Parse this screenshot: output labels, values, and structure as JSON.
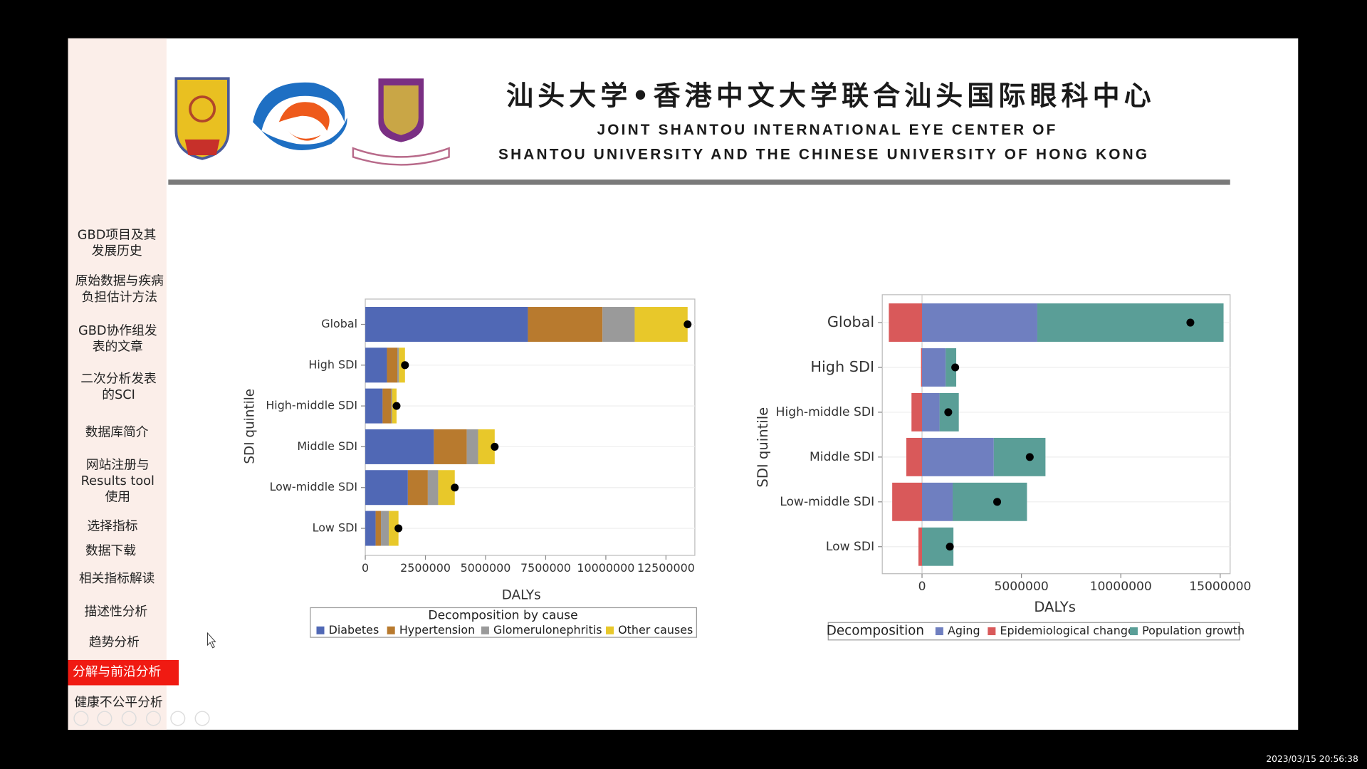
{
  "header": {
    "title_cn": "汕头大学•香港中文大学联合汕头国际眼科中心",
    "title_en": [
      "JOINT SHANTOU INTERNATIONAL EYE CENTER  OF",
      "SHANTOU UNIVERSITY AND THE CHINESE UNIVERSITY OF HONG KONG"
    ]
  },
  "sidebar": {
    "items": [
      [
        "GBD项目及其",
        "发展历史"
      ],
      [
        "原始数据与疾病",
        "负担估计方法"
      ],
      [
        "GBD协作组发",
        "表的文章"
      ],
      [
        "二次分析发表",
        "的SCI"
      ],
      [
        "数据库简介"
      ],
      [
        "网站注册与",
        "Results tool",
        "使用"
      ],
      [
        "选择指标"
      ],
      [
        "数据下载"
      ],
      [
        "相关指标解读"
      ],
      [
        "描述性分析"
      ],
      [
        "趋势分析"
      ],
      [
        "分解与前沿分析"
      ],
      [
        "健康不公平分析"
      ]
    ],
    "active": 11
  },
  "footer": {
    "timestamp": "2023/03/15 20:56:38"
  },
  "chart_data": [
    {
      "type": "bar",
      "orientation": "horizontal",
      "stacked": true,
      "categories": [
        "Global",
        "High SDI",
        "High-middle SDI",
        "Middle SDI",
        "Low-middle SDI",
        "Low SDI"
      ],
      "series": [
        {
          "name": "Diabetes",
          "color": "#5068b5",
          "values": [
            6760000,
            900000,
            720000,
            2850000,
            1770000,
            430000
          ]
        },
        {
          "name": "Hypertension",
          "color": "#b87a2e",
          "values": [
            3100000,
            430000,
            360000,
            1370000,
            830000,
            220000
          ]
        },
        {
          "name": "Glomerulonephritis",
          "color": "#9a9a9a",
          "values": [
            1340000,
            70000,
            40000,
            470000,
            430000,
            330000
          ]
        },
        {
          "name": "Other causes",
          "color": "#e8c82a",
          "values": [
            2200000,
            250000,
            180000,
            690000,
            690000,
            400000
          ]
        }
      ],
      "xlim": [
        0,
        13700000
      ],
      "xticks": [
        0,
        2500000,
        5000000,
        7500000,
        10000000,
        12500000
      ],
      "xlabel": "DALYs",
      "ylabel": "SDI quintile",
      "legend_title": "Decomposition by cause",
      "legend": "bottom",
      "grid": true
    },
    {
      "type": "bar",
      "orientation": "horizontal",
      "stacked": true,
      "categories": [
        "Global",
        "High SDI",
        "High-middle SDI",
        "Middle SDI",
        "Low-middle SDI",
        "Low SDI"
      ],
      "series": [
        {
          "name": "Aging",
          "color": "#6f7fc0",
          "values": [
            5800000,
            1190000,
            880000,
            3610000,
            1540000,
            0
          ]
        },
        {
          "name": "Epidemiological change",
          "color": "#d9595a",
          "values": [
            -1670000,
            -50000,
            -530000,
            -790000,
            -1500000,
            -180000
          ]
        },
        {
          "name": "Population growth",
          "color": "#5a9e97",
          "values": [
            9370000,
            530000,
            970000,
            2600000,
            3740000,
            1580000
          ]
        }
      ],
      "xlim": [
        -2000000,
        15500000
      ],
      "xticks": [
        0,
        5000000,
        10000000,
        15000000
      ],
      "xlabel": "DALYs",
      "ylabel": "SDI quintile",
      "legend_title": "Decomposition",
      "legend": "bottom",
      "grid": true
    }
  ]
}
